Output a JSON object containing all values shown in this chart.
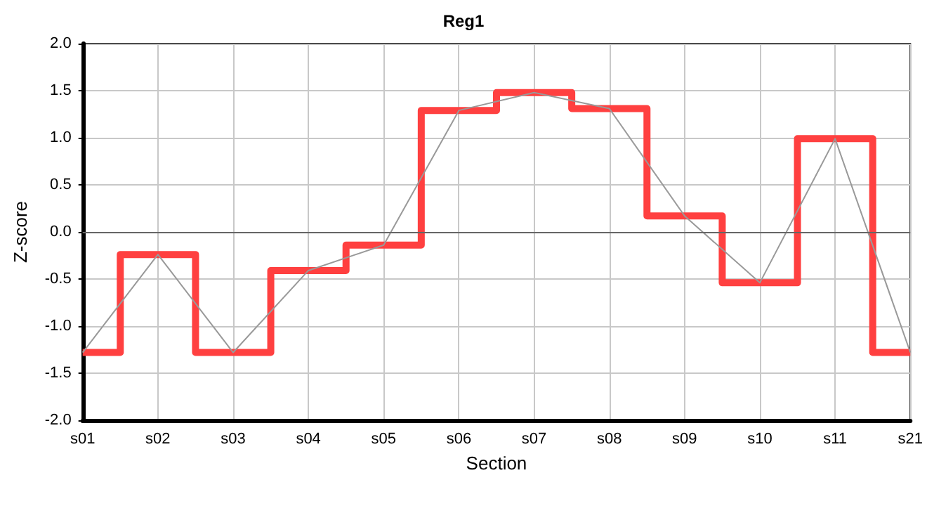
{
  "chart_data": {
    "type": "line",
    "title": "Reg1",
    "xlabel": "Section",
    "ylabel": "Z-score",
    "categories": [
      "s01",
      "s02",
      "s03",
      "s04",
      "s05",
      "s06",
      "s07",
      "s08",
      "s09",
      "s10",
      "s11",
      "s21"
    ],
    "series": [
      {
        "type": "step",
        "color": "#ff4040",
        "values": [
          -1.28,
          -0.24,
          -1.28,
          -0.41,
          -0.14,
          1.29,
          1.48,
          1.31,
          0.17,
          -0.54,
          0.99,
          -1.28
        ]
      },
      {
        "color": "#999999",
        "values": [
          -1.28,
          -0.24,
          -1.28,
          -0.41,
          -0.14,
          1.29,
          1.48,
          1.31,
          0.17,
          -0.54,
          0.99,
          -1.28
        ]
      }
    ],
    "ylim": [
      -2,
      2
    ],
    "yticks": [
      {
        "value": -2,
        "label": "-2.0"
      },
      {
        "value": -1.5,
        "label": "-1.5"
      },
      {
        "value": -1,
        "label": "-1.0"
      },
      {
        "value": -0.5,
        "label": "-0.5"
      },
      {
        "value": 0,
        "label": "0.0"
      },
      {
        "value": 0.5,
        "label": "0.5"
      },
      {
        "value": 1,
        "label": "1.0"
      },
      {
        "value": 1.5,
        "label": "1.5"
      },
      {
        "value": 2,
        "label": "2.0"
      }
    ],
    "ref_lines": [
      {
        "axis": "y",
        "value": 0,
        "color": "#666666"
      }
    ],
    "grid": true
  }
}
